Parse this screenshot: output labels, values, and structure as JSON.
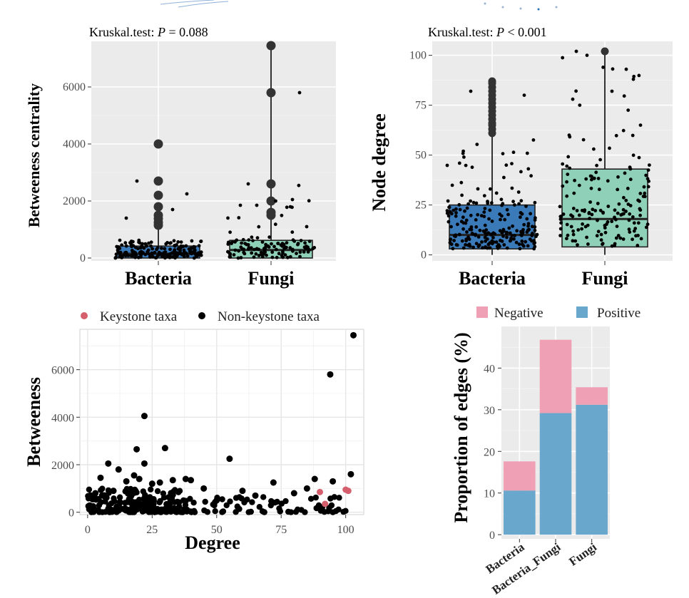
{
  "colors": {
    "bacteria_box": "#3a7ab8",
    "fungi_box": "#8fd0b8",
    "keystone": "#d65f6e",
    "non_keystone": "#000000",
    "negative": "#f0a0b5",
    "positive": "#6aa7cc",
    "outlier": "#333333"
  },
  "chart_data": [
    {
      "id": "betweenness_box",
      "type": "box",
      "title": "",
      "test_prefix": "Kruskal.test: ",
      "test_stat": "P",
      "test_rest": " = 0.088",
      "ylabel": "Betweeness centrality",
      "xlabel": "",
      "ylim": [
        -100,
        7600
      ],
      "yticks": [
        0,
        2000,
        4000,
        6000
      ],
      "ytick_labels": [
        "0",
        "2000",
        "4000",
        "6000"
      ],
      "categories": [
        "Bacteria",
        "Fungi"
      ],
      "boxes": [
        {
          "name": "Bacteria",
          "q1": 0,
          "median": 150,
          "q3": 420,
          "low": 0,
          "high": 1050,
          "outliers": [
            1150,
            1250,
            1380,
            1500,
            1800,
            2200,
            2700,
            4000
          ]
        },
        {
          "name": "Fungi",
          "q1": 0,
          "median": 280,
          "q3": 620,
          "low": 0,
          "high": 7450,
          "outliers": [
            1500,
            1600,
            2000,
            2600,
            5800,
            7450
          ]
        }
      ],
      "jitter_counts": [
        180,
        120
      ]
    },
    {
      "id": "degree_box",
      "type": "box",
      "title": "",
      "test_prefix": "Kruskal.test: ",
      "test_stat": "P",
      "test_rest": " < 0.001",
      "ylabel": "Node degree",
      "xlabel": "",
      "ylim": [
        -3,
        107
      ],
      "yticks": [
        0,
        25,
        50,
        75,
        100
      ],
      "ytick_labels": [
        "0",
        "25",
        "50",
        "75",
        "100"
      ],
      "categories": [
        "Bacteria",
        "Fungi"
      ],
      "boxes": [
        {
          "name": "Bacteria",
          "q1": 3,
          "median": 10,
          "q3": 25,
          "low": 0,
          "high": 60,
          "outliers": [
            61,
            63,
            65,
            66,
            68,
            70,
            72,
            74,
            76,
            78,
            80,
            82,
            84,
            86,
            87
          ]
        },
        {
          "name": "Fungi",
          "q1": 4,
          "median": 18,
          "q3": 43,
          "low": 0,
          "high": 102,
          "outliers": [
            102
          ]
        }
      ],
      "jitter_counts": [
        220,
        160
      ]
    },
    {
      "id": "degree_betweenness_scatter",
      "type": "scatter",
      "title": "",
      "xlabel": "Degree",
      "ylabel": "Betweeness",
      "xlim": [
        -3,
        107
      ],
      "ylim": [
        -100,
        7700
      ],
      "xticks": [
        0,
        25,
        50,
        75,
        100
      ],
      "xtick_labels": [
        "0",
        "25",
        "50",
        "75",
        "100"
      ],
      "yticks": [
        0,
        2000,
        4000,
        6000
      ],
      "ytick_labels": [
        "0",
        "2000",
        "4000",
        "6000"
      ],
      "legend": [
        {
          "label": "Keystone taxa",
          "key": "keystone"
        },
        {
          "label": "Non-keystone taxa",
          "key": "non_keystone"
        }
      ],
      "series": [
        {
          "name": "Keystone taxa",
          "points": [
            [
              90,
              850
            ],
            [
              92,
              350
            ],
            [
              100,
              950
            ],
            [
              101,
              900
            ]
          ]
        },
        {
          "name": "Non-keystone taxa",
          "points": [
            [
              103,
              7450
            ],
            [
              94,
              5800
            ],
            [
              22,
              4050
            ],
            [
              30,
              2700
            ],
            [
              19,
              2650
            ],
            [
              8,
              2050
            ],
            [
              22,
              2050
            ],
            [
              55,
              2250
            ],
            [
              12,
              1800
            ],
            [
              18,
              1550
            ],
            [
              20,
              1400
            ],
            [
              5,
              1450
            ],
            [
              33,
              1350
            ],
            [
              38,
              1400
            ],
            [
              40,
              1350
            ],
            [
              28,
              1250
            ],
            [
              15,
              1300
            ],
            [
              25,
              1200
            ],
            [
              45,
              1000
            ],
            [
              60,
              900
            ],
            [
              72,
              1250
            ],
            [
              85,
              1000
            ],
            [
              88,
              1400
            ],
            [
              95,
              1300
            ],
            [
              102,
              1600
            ],
            [
              80,
              800
            ],
            [
              65,
              700
            ],
            [
              50,
              500
            ],
            [
              10,
              900
            ],
            [
              3,
              800
            ]
          ],
          "cluster_count": 260
        }
      ]
    },
    {
      "id": "edge_proportion_bar",
      "type": "bar",
      "title": "",
      "xlabel": "",
      "ylabel": "Proportion of edges (%)",
      "ylim": [
        -1,
        50
      ],
      "yticks": [
        0,
        10,
        20,
        30,
        40
      ],
      "ytick_labels": [
        "0",
        "10",
        "20",
        "30",
        "40"
      ],
      "categories": [
        "Bacteria",
        "Bacteria_Fungi",
        "Fungi"
      ],
      "legend": [
        {
          "label": "Negative",
          "key": "negative"
        },
        {
          "label": "Positive",
          "key": "positive"
        }
      ],
      "series": [
        {
          "name": "Positive",
          "values": [
            10.6,
            29.2,
            31.2
          ]
        },
        {
          "name": "Negative",
          "values": [
            7.0,
            17.6,
            4.2
          ]
        }
      ]
    }
  ]
}
